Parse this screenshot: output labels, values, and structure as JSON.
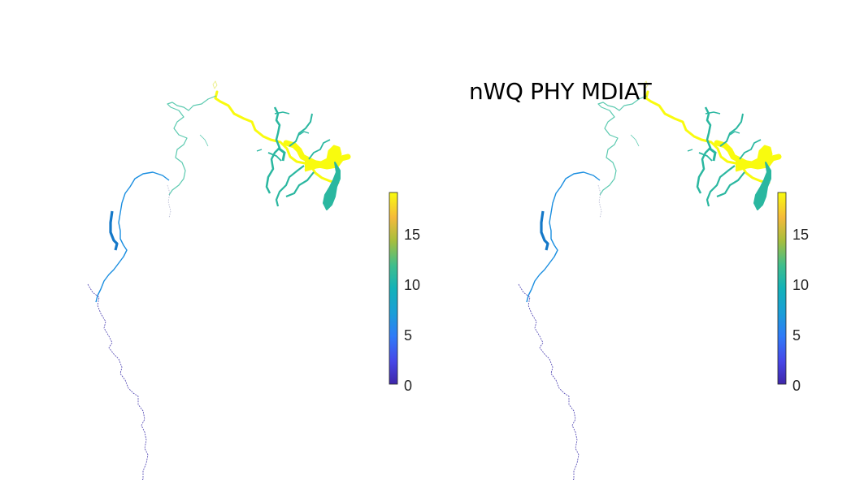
{
  "figure": {
    "title": "nWQ PHY MDIAT",
    "panels": [
      {
        "name": "left-map",
        "colorbar": {
          "min": 0,
          "max": 19,
          "ticks": [
            0,
            5,
            10,
            15
          ],
          "tick_labels": [
            "0",
            "5",
            "10",
            "15"
          ],
          "colormap": "parula"
        }
      },
      {
        "name": "right-map",
        "colorbar": {
          "min": 0,
          "max": 19,
          "ticks": [
            0,
            5,
            10,
            15
          ],
          "tick_labels": [
            "0",
            "5",
            "10",
            "15"
          ],
          "colormap": "parula"
        }
      }
    ]
  },
  "colors": {
    "yellow": "#f9fb0e",
    "teal": "#2ab7a0",
    "light_teal": "#5ccab0",
    "blue": "#1a8ee0",
    "blue_dark": "#1478c8",
    "purple": "#4a3fb0",
    "navy": "#3e26a8"
  }
}
